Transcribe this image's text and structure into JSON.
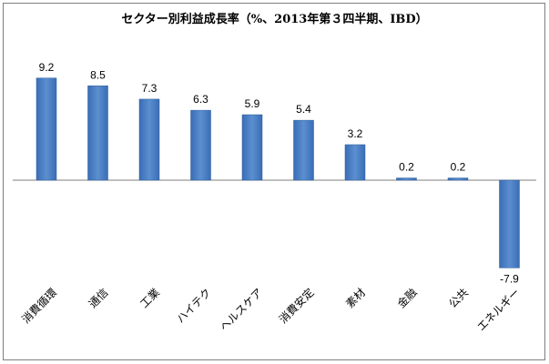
{
  "chart_data": {
    "type": "bar",
    "title": "セクター別利益成長率（%、2013年第３四半期、IBD）",
    "categories": [
      "消費循環",
      "通信",
      "工業",
      "ハイテク",
      "ヘルスケア",
      "消費安定",
      "素材",
      "金融",
      "公共",
      "エネルギー"
    ],
    "values": [
      9.2,
      8.5,
      7.3,
      6.3,
      5.9,
      5.4,
      3.2,
      0.2,
      0.2,
      -7.9
    ],
    "value_labels": [
      "9.2",
      "8.5",
      "7.3",
      "6.3",
      "5.9",
      "5.4",
      "3.2",
      "0.2",
      "0.2",
      "-7.9"
    ],
    "xlabel": "",
    "ylabel": "",
    "ylim": [
      -9,
      11
    ],
    "grid": false,
    "colors": {
      "bar": "#4a7ebb",
      "bar_dark": "#2f5f9b",
      "axis": "#7f7f7f"
    }
  }
}
